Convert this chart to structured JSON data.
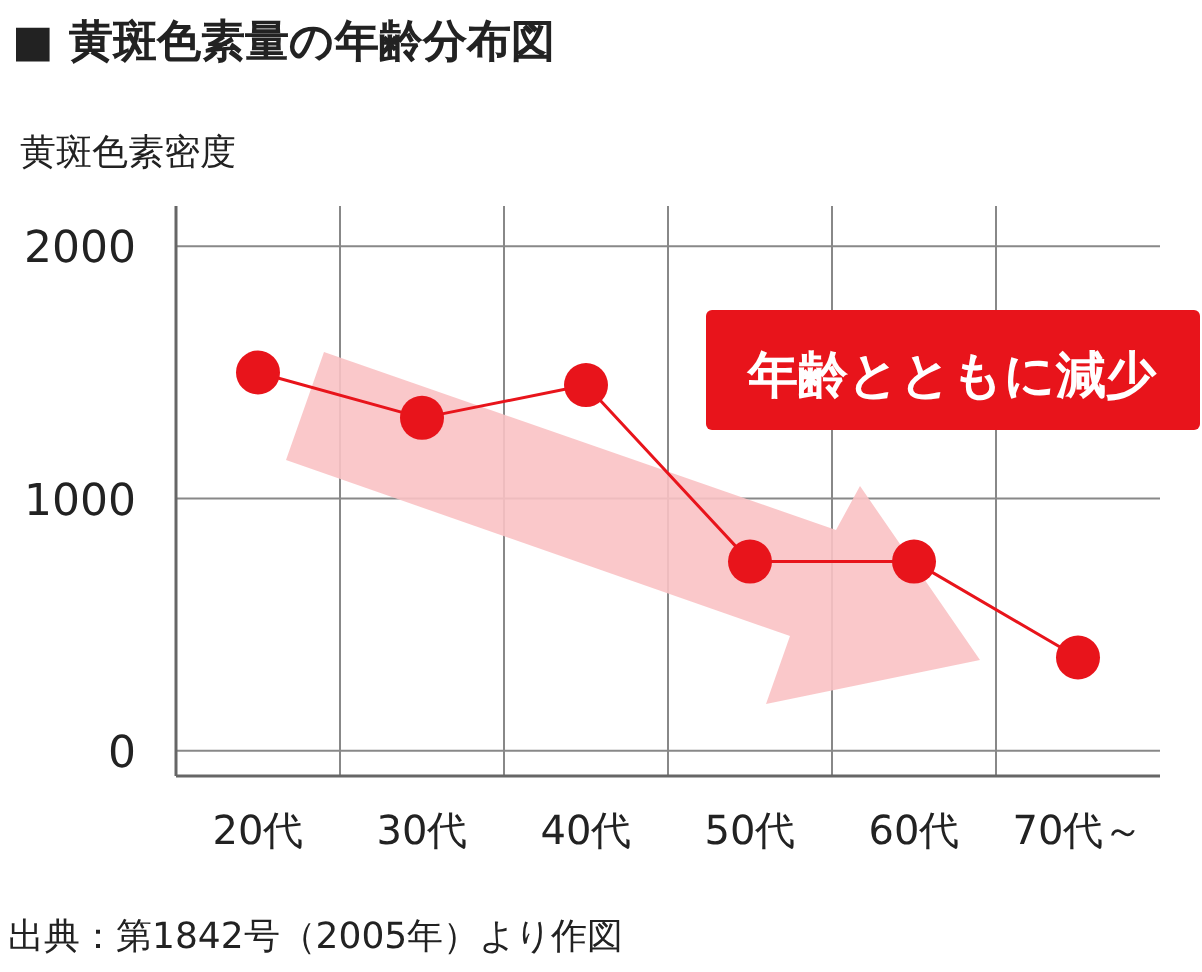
{
  "chart_data": {
    "type": "line",
    "title": "■ 黄斑色素量の年齢分布図",
    "ylabel": "黄斑色素密度",
    "categories": [
      "20代",
      "30代",
      "40代",
      "50代",
      "60代",
      "70代～"
    ],
    "series": [
      {
        "color": "#e8141b",
        "values": [
          1500,
          1320,
          1450,
          750,
          750,
          370
        ]
      }
    ],
    "ylim": [
      -100,
      2160
    ],
    "yticks": [
      0,
      1000,
      2000
    ],
    "grid": true,
    "marker": "circle",
    "line_style": "solid",
    "annotations": [
      "年齢とともに減少",
      "出典：第1842号（2005年）より作図"
    ]
  }
}
